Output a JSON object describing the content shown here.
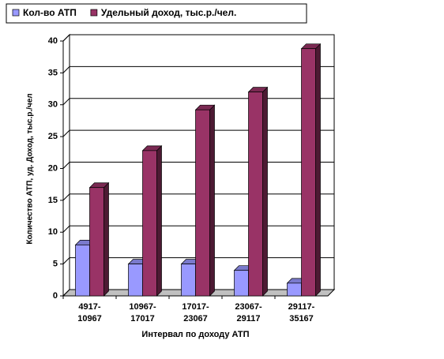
{
  "chart_data": {
    "type": "bar3d",
    "categories": [
      "4917-10967",
      "10967-17017",
      "17017-23067",
      "23067-29117",
      "29117-35167"
    ],
    "series": [
      {
        "name": "Кол-во АТП",
        "color": "#9999ff",
        "values": [
          8,
          5,
          5,
          4,
          2
        ]
      },
      {
        "name": "Удельный доход, тыс.р./чел.",
        "color": "#993366",
        "values": [
          17,
          22.8,
          29.2,
          32,
          38.8
        ]
      }
    ],
    "ylim": [
      0,
      40
    ],
    "yticks": [
      0,
      5,
      10,
      15,
      20,
      25,
      30,
      35,
      40
    ],
    "grid": true,
    "ylabel": "Количество АТП, уд. Доход, тыс.р./чел",
    "xlabel": "Интервал по доходу АТП"
  }
}
